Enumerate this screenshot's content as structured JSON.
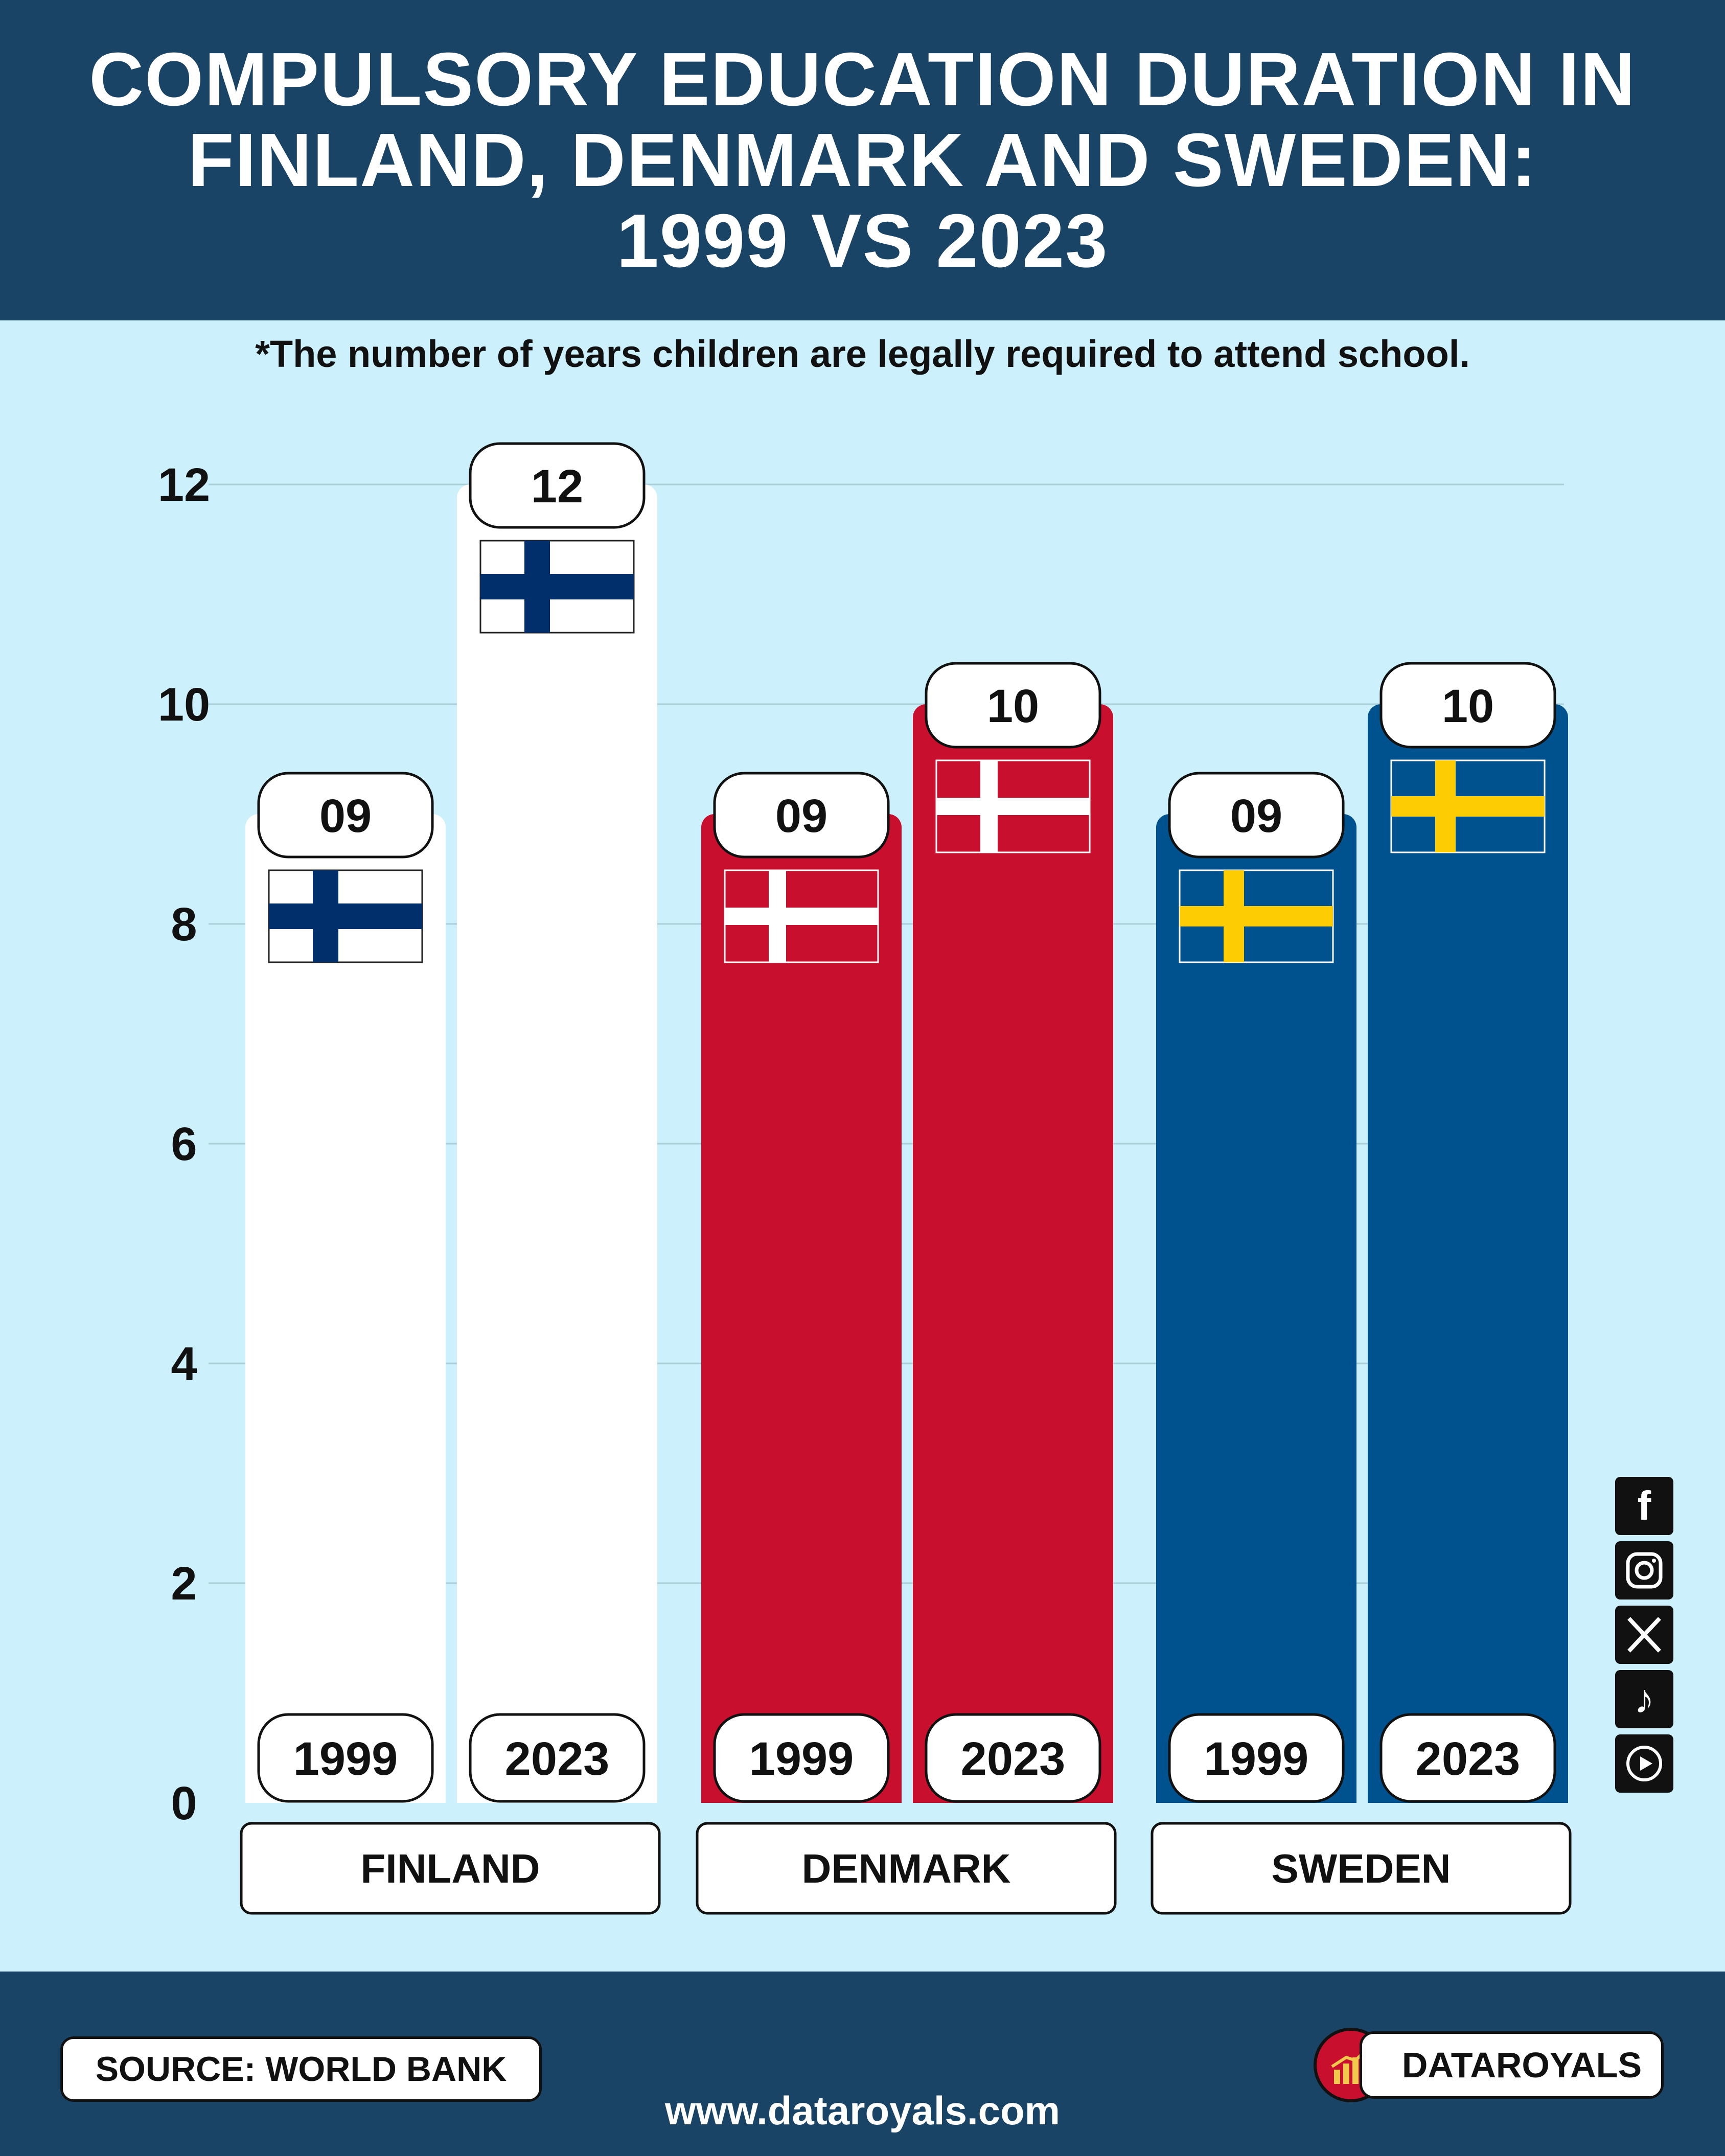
{
  "header": {
    "title_lines": [
      "COMPULSORY EDUCATION DURATION IN",
      "FINLAND, DENMARK AND SWEDEN:",
      "1999 VS 2023"
    ]
  },
  "subtitle": "*The number of years children are legally required to attend school.",
  "chart_data": {
    "type": "bar",
    "title": "COMPULSORY EDUCATION DURATION IN FINLAND, DENMARK AND SWEDEN: 1999 VS 2023",
    "subtitle": "*The number of years children are legally required to attend school.",
    "categories": [
      "FINLAND",
      "DENMARK",
      "SWEDEN"
    ],
    "series": [
      {
        "name": "1999",
        "values": [
          9,
          9,
          9
        ],
        "labels": [
          "09",
          "09",
          "09"
        ]
      },
      {
        "name": "2023",
        "values": [
          12,
          10,
          10
        ],
        "labels": [
          "12",
          "10",
          "10"
        ]
      }
    ],
    "bar_colors": [
      "#ffffff",
      "#c8102e",
      "#00528f"
    ],
    "flags": [
      "finland-flag",
      "denmark-flag",
      "sweden-flag"
    ],
    "yticks": [
      0,
      2,
      4,
      6,
      8,
      10,
      12
    ],
    "ylim": [
      0,
      12
    ],
    "grid": true,
    "xlabel": "",
    "ylabel": ""
  },
  "footer": {
    "source": "SOURCE: WORLD BANK",
    "brand": "DATAROYALS",
    "website": "www.dataroyals.com"
  },
  "social_icons": [
    "facebook-icon",
    "instagram-icon",
    "x-icon",
    "tiktok-icon",
    "youtube-icon"
  ],
  "colors": {
    "header_bg": "#1a4466",
    "page_bg": "#cdf1fc",
    "finland": "#ffffff",
    "denmark": "#c8102e",
    "sweden": "#00528f",
    "finland_flag_cross": "#002f6c",
    "sweden_flag_cross": "#fecc02"
  }
}
